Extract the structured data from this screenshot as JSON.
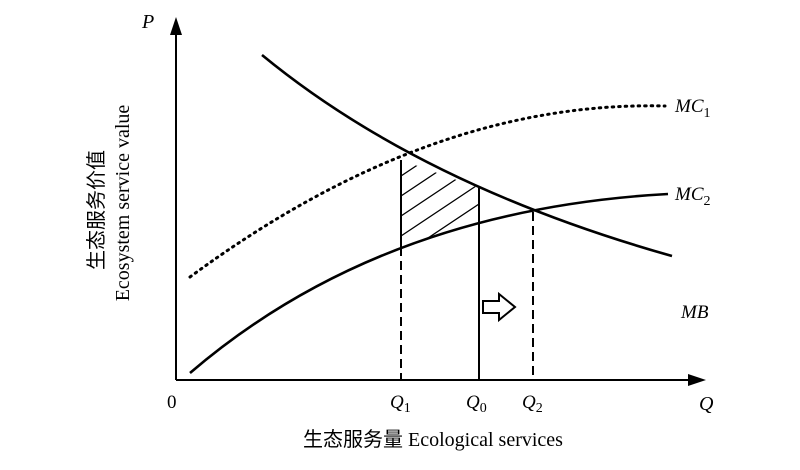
{
  "axes": {
    "y_symbol": "P",
    "x_symbol": "Q",
    "origin": "0",
    "y_title_cn": "生态服务价值",
    "y_title_en": "Ecosystem service value",
    "x_title": "生态服务量 Ecological services"
  },
  "curves": {
    "mc1": {
      "main": "MC",
      "sub": "1"
    },
    "mc2": {
      "main": "MC",
      "sub": "2"
    },
    "mb": {
      "main": "MB"
    }
  },
  "quantities": {
    "q1": {
      "main": "Q",
      "sub": "1"
    },
    "q0": {
      "main": "Q",
      "sub": "0"
    },
    "q2": {
      "main": "Q",
      "sub": "2"
    }
  },
  "style": {
    "ink": "#000000",
    "background": "#ffffff"
  }
}
